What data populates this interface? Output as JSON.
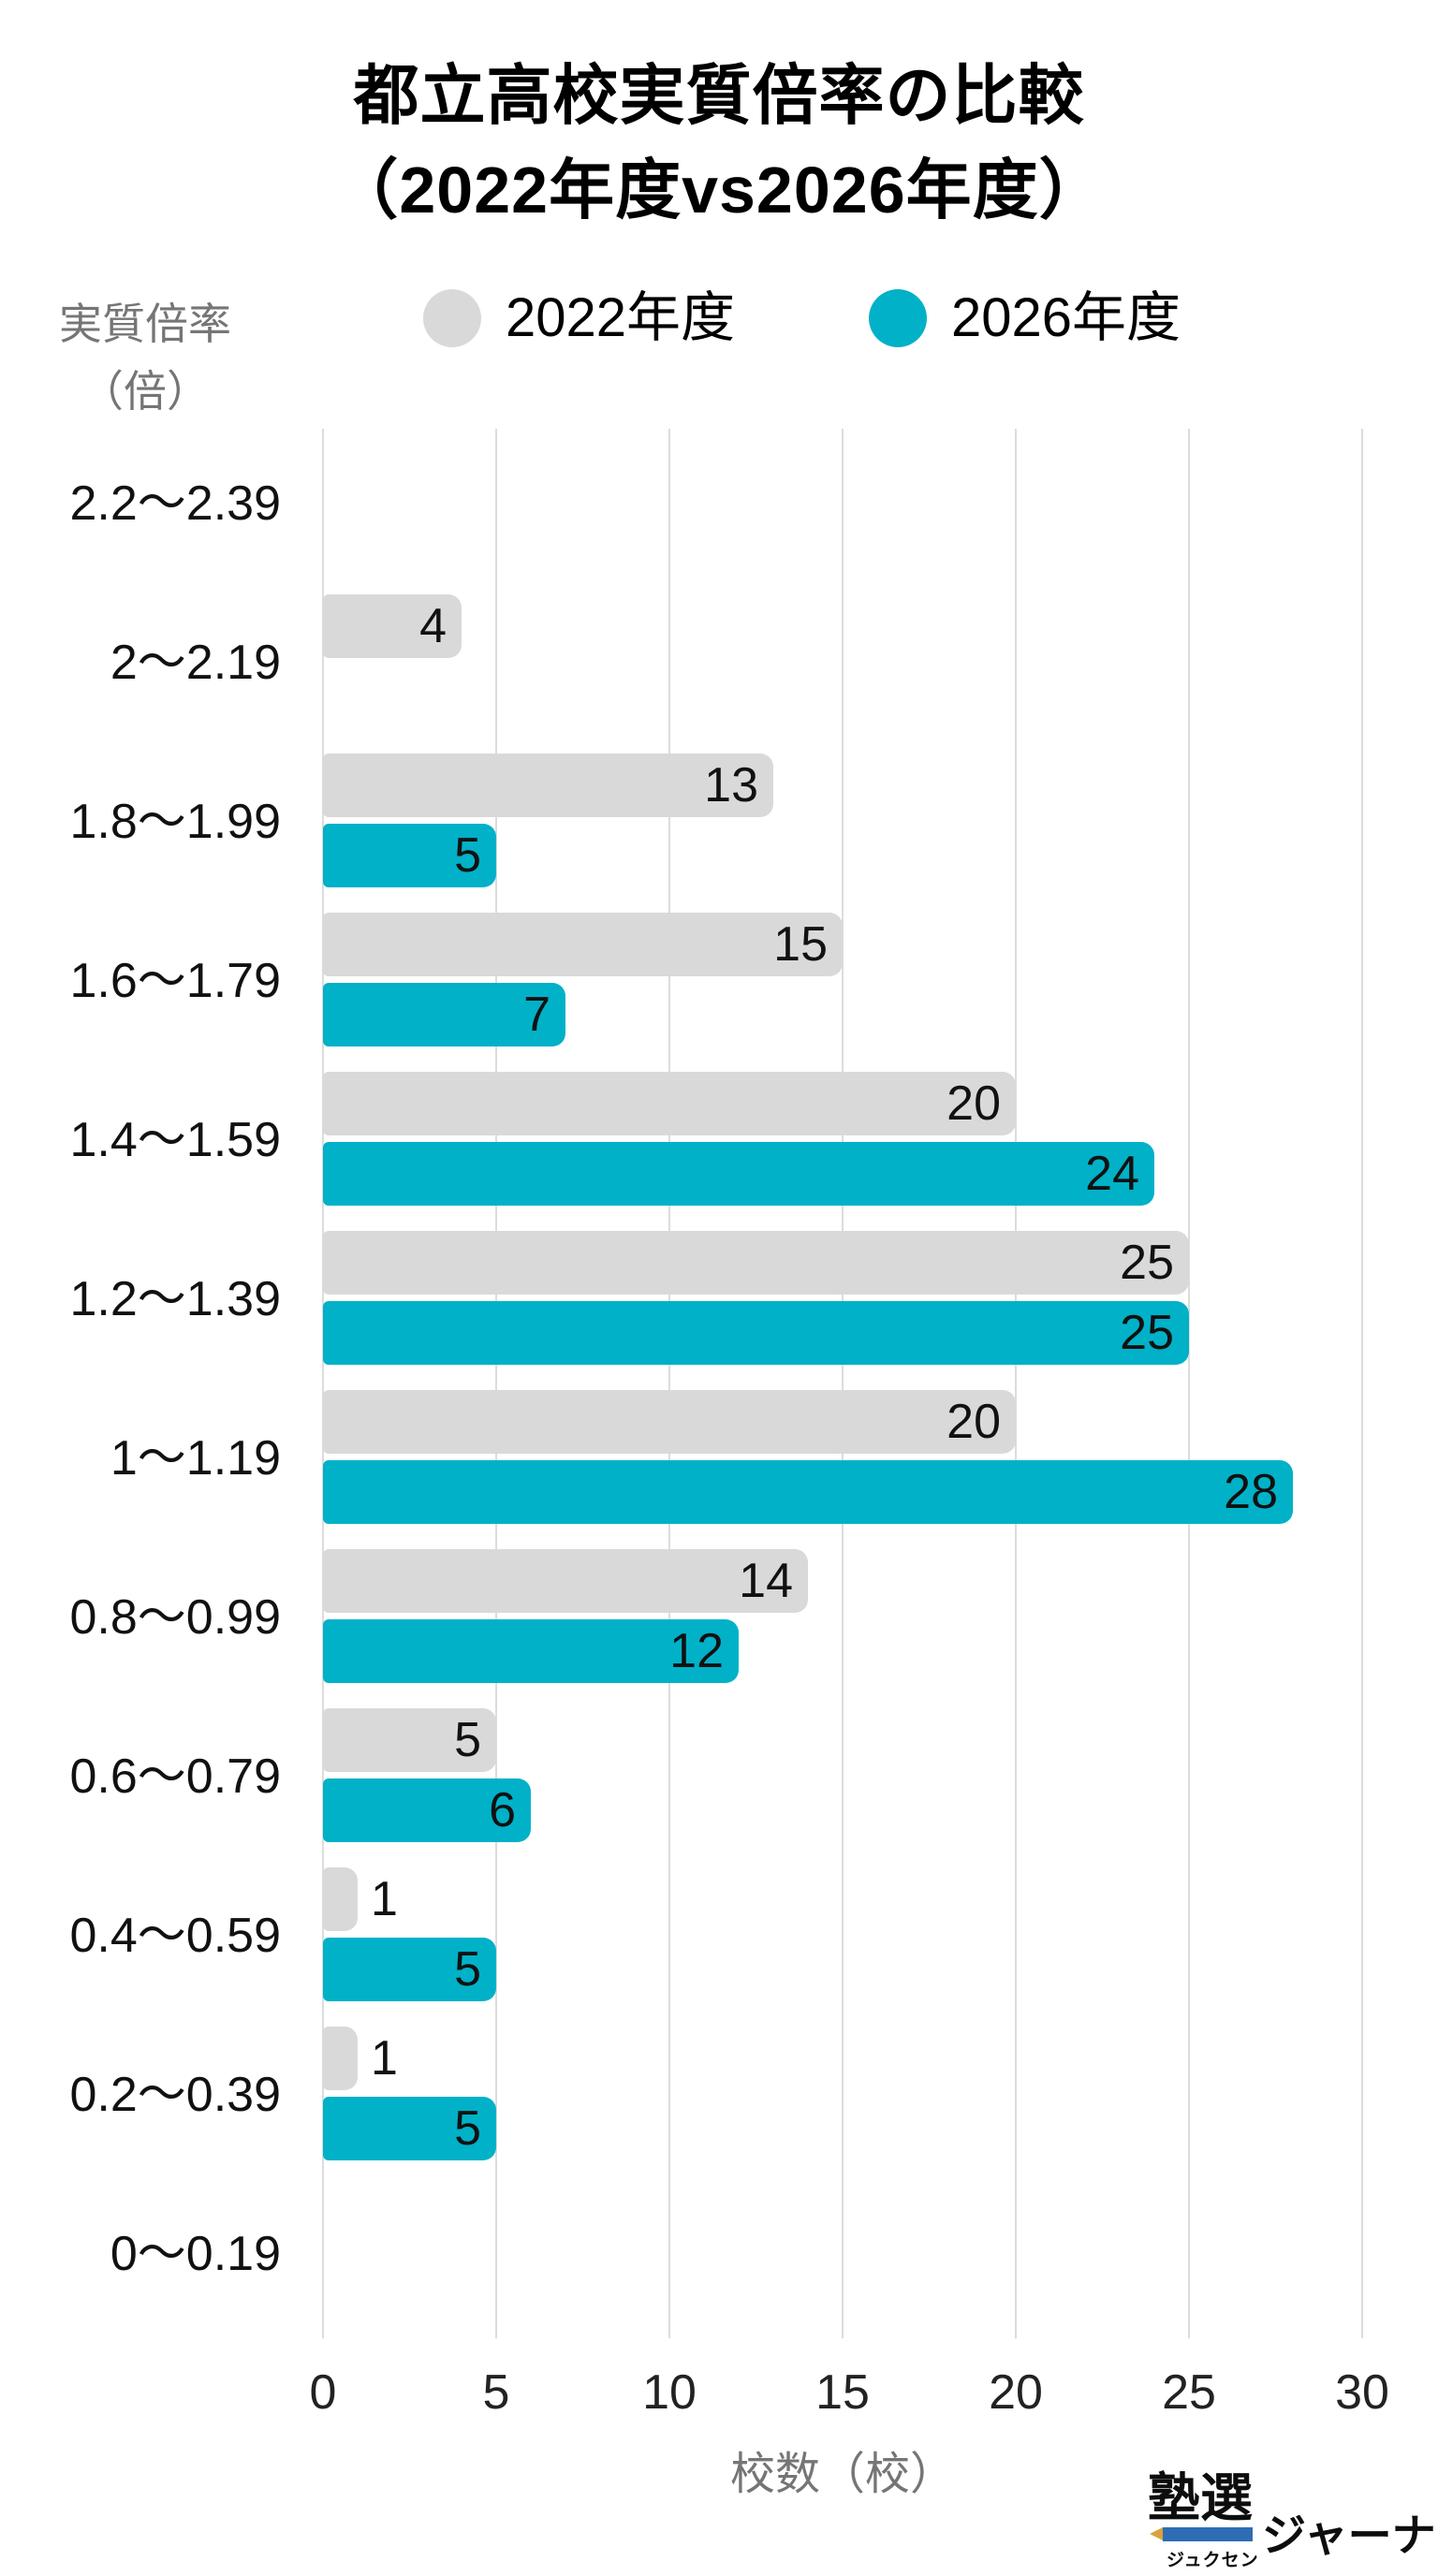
{
  "header": {
    "title_line1": "都立高校実質倍率の比較",
    "title_line2": "（2022年度vs2026年度）"
  },
  "axes": {
    "y_title_line1": "実質倍率",
    "y_title_line2": "（倍）",
    "x_label": "校数（校）"
  },
  "chart_data": {
    "type": "bar",
    "orientation": "horizontal",
    "title": "都立高校実質倍率の比較（2022年度vs2026年度）",
    "categories": [
      "2.2～2.39",
      "2～2.19",
      "1.8～1.99",
      "1.6～1.79",
      "1.4～1.59",
      "1.2～1.39",
      "1～1.19",
      "0.8～0.99",
      "0.6～0.79",
      "0.4～0.59",
      "0.2～0.39",
      "0～0.19"
    ],
    "series": [
      {
        "name": "2022年度",
        "color": "#d9d9d9",
        "values": [
          0,
          4,
          13,
          15,
          20,
          25,
          20,
          14,
          5,
          1,
          1,
          0
        ]
      },
      {
        "name": "2026年度",
        "color": "#00b1c8",
        "values": [
          0,
          0,
          5,
          7,
          24,
          25,
          28,
          12,
          6,
          5,
          5,
          0
        ]
      }
    ],
    "xlabel": "校数（校）",
    "ylabel": "実質倍率（倍）",
    "xlim": [
      0,
      30
    ],
    "xticks": [
      0,
      5,
      10,
      15,
      20,
      25,
      30
    ],
    "grid": true,
    "gridline_color": "#dcdcdc",
    "legend_position": "top",
    "value_labels": true,
    "value_label_inside_min": 4
  },
  "logo": {
    "main": "塾選",
    "kana": "ジュクセン",
    "journal": "ジャーナル",
    "pencil_color": "#2e6db4",
    "tip_color": "#d9a43b"
  }
}
